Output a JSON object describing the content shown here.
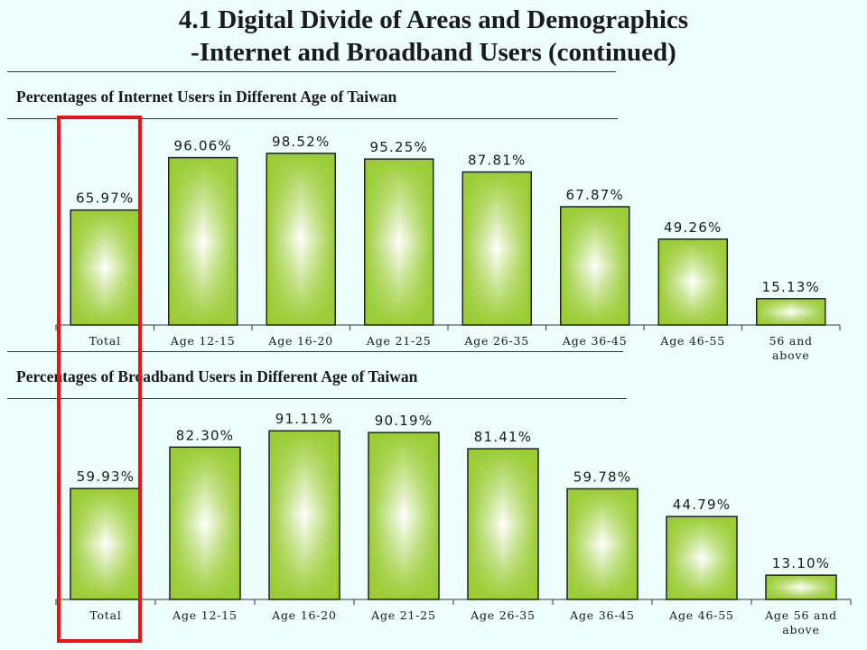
{
  "header": {
    "title_line1": "4.1 Digital Divide of Areas and Demographics",
    "title_line2": "-Internet and Broadband Users (continued)"
  },
  "chart_data": [
    {
      "type": "bar",
      "title": "Percentages of Internet Users in Different Age of Taiwan",
      "categories": [
        "Total",
        "Age 12-15",
        "Age 16-20",
        "Age 21-25",
        "Age 26-35",
        "Age 36-45",
        "Age 46-55",
        "56 and above"
      ],
      "values": [
        65.97,
        96.06,
        98.52,
        95.25,
        87.81,
        67.87,
        49.26,
        15.13
      ],
      "value_labels": [
        "65.97%",
        "96.06%",
        "98.52%",
        "95.25%",
        "87.81%",
        "67.87%",
        "49.26%",
        "15.13%"
      ],
      "unit": "%",
      "ylim": [
        0,
        100
      ],
      "grid": false,
      "legend": "none"
    },
    {
      "type": "bar",
      "title": "Percentages of Broadband Users in Different Age of Taiwan",
      "categories": [
        "Total",
        "Age 12-15",
        "Age 16-20",
        "Age 21-25",
        "Age 26-35",
        "Age 36-45",
        "Age 46-55",
        "Age 56 and above"
      ],
      "values": [
        59.93,
        82.3,
        91.11,
        90.19,
        81.41,
        59.78,
        44.79,
        13.1
      ],
      "value_labels": [
        "59.93%",
        "82.30%",
        "91.11%",
        "90.19%",
        "81.41%",
        "59.78%",
        "44.79%",
        "13.10%"
      ],
      "unit": "%",
      "ylim": [
        0,
        100
      ],
      "grid": false,
      "legend": "none"
    }
  ],
  "colors": {
    "bar_edge": "#99cc33",
    "bar_center": "#ffffff",
    "highlight": "#ee1111"
  }
}
